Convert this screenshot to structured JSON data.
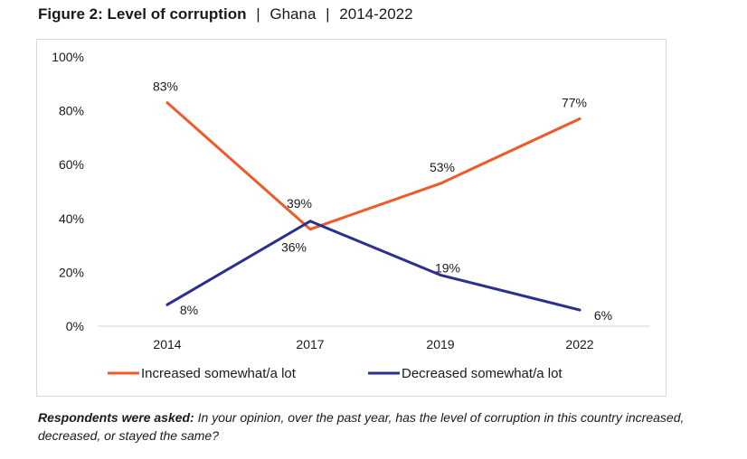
{
  "header": {
    "title_bold": "Figure 2: Level of corruption",
    "separator": "|",
    "country": "Ghana",
    "years": "2014-2022"
  },
  "chart_data": {
    "type": "line",
    "x": [
      "2014",
      "2017",
      "2019",
      "2022"
    ],
    "ylim": [
      0,
      100
    ],
    "y_ticks": [
      "0%",
      "20%",
      "40%",
      "60%",
      "80%",
      "100%"
    ],
    "grid": false,
    "legend_position": "bottom",
    "series": [
      {
        "name": "Increased somewhat/a lot",
        "color": "#ee5a2a",
        "values": [
          83,
          36,
          53,
          77
        ],
        "labels": [
          "83%",
          "36%",
          "53%",
          "77%"
        ]
      },
      {
        "name": "Decreased somewhat/a lot",
        "color": "#2b2f8e",
        "values": [
          8,
          39,
          19,
          6
        ],
        "labels": [
          "8%",
          "39%",
          "19%",
          "6%"
        ]
      }
    ]
  },
  "footnote": {
    "bold": "Respondents were asked:",
    "text": " In your opinion, over the past year, has the level of corruption in this country increased, decreased, or stayed the same?"
  }
}
